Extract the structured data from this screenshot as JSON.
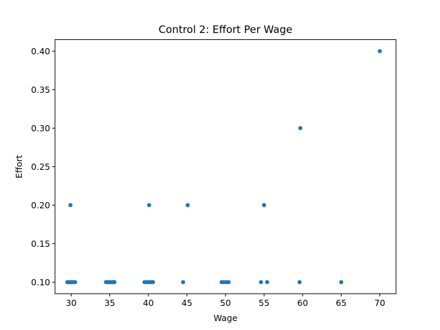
{
  "chart_data": {
    "type": "scatter",
    "title": "Control 2: Effort Per Wage",
    "xlabel": "Wage",
    "ylabel": "Effort",
    "xlim": [
      27.9,
      72.1
    ],
    "ylim": [
      0.085,
      0.415
    ],
    "xticks": [
      "30",
      "35",
      "40",
      "45",
      "50",
      "55",
      "60",
      "65",
      "70"
    ],
    "yticks": [
      "0.10",
      "0.15",
      "0.20",
      "0.25",
      "0.30",
      "0.35",
      "0.40"
    ],
    "grid": false,
    "color": "#1f77b4",
    "points": [
      {
        "x": 29.5,
        "y": 0.1
      },
      {
        "x": 29.7,
        "y": 0.1
      },
      {
        "x": 29.9,
        "y": 0.1
      },
      {
        "x": 30.0,
        "y": 0.1
      },
      {
        "x": 30.1,
        "y": 0.1
      },
      {
        "x": 30.3,
        "y": 0.1
      },
      {
        "x": 30.5,
        "y": 0.1
      },
      {
        "x": 29.9,
        "y": 0.2
      },
      {
        "x": 34.5,
        "y": 0.1
      },
      {
        "x": 34.7,
        "y": 0.1
      },
      {
        "x": 34.9,
        "y": 0.1
      },
      {
        "x": 35.0,
        "y": 0.1
      },
      {
        "x": 35.2,
        "y": 0.1
      },
      {
        "x": 35.4,
        "y": 0.1
      },
      {
        "x": 35.6,
        "y": 0.1
      },
      {
        "x": 39.5,
        "y": 0.1
      },
      {
        "x": 39.8,
        "y": 0.1
      },
      {
        "x": 40.0,
        "y": 0.1
      },
      {
        "x": 40.2,
        "y": 0.1
      },
      {
        "x": 40.4,
        "y": 0.1
      },
      {
        "x": 40.6,
        "y": 0.1
      },
      {
        "x": 40.1,
        "y": 0.2
      },
      {
        "x": 44.5,
        "y": 0.1
      },
      {
        "x": 45.1,
        "y": 0.2
      },
      {
        "x": 49.5,
        "y": 0.1
      },
      {
        "x": 49.8,
        "y": 0.1
      },
      {
        "x": 50.1,
        "y": 0.1
      },
      {
        "x": 50.4,
        "y": 0.1
      },
      {
        "x": 54.6,
        "y": 0.1
      },
      {
        "x": 55.4,
        "y": 0.1
      },
      {
        "x": 55.0,
        "y": 0.2
      },
      {
        "x": 59.6,
        "y": 0.1
      },
      {
        "x": 59.7,
        "y": 0.3
      },
      {
        "x": 65.0,
        "y": 0.1
      },
      {
        "x": 70.0,
        "y": 0.4
      }
    ]
  }
}
